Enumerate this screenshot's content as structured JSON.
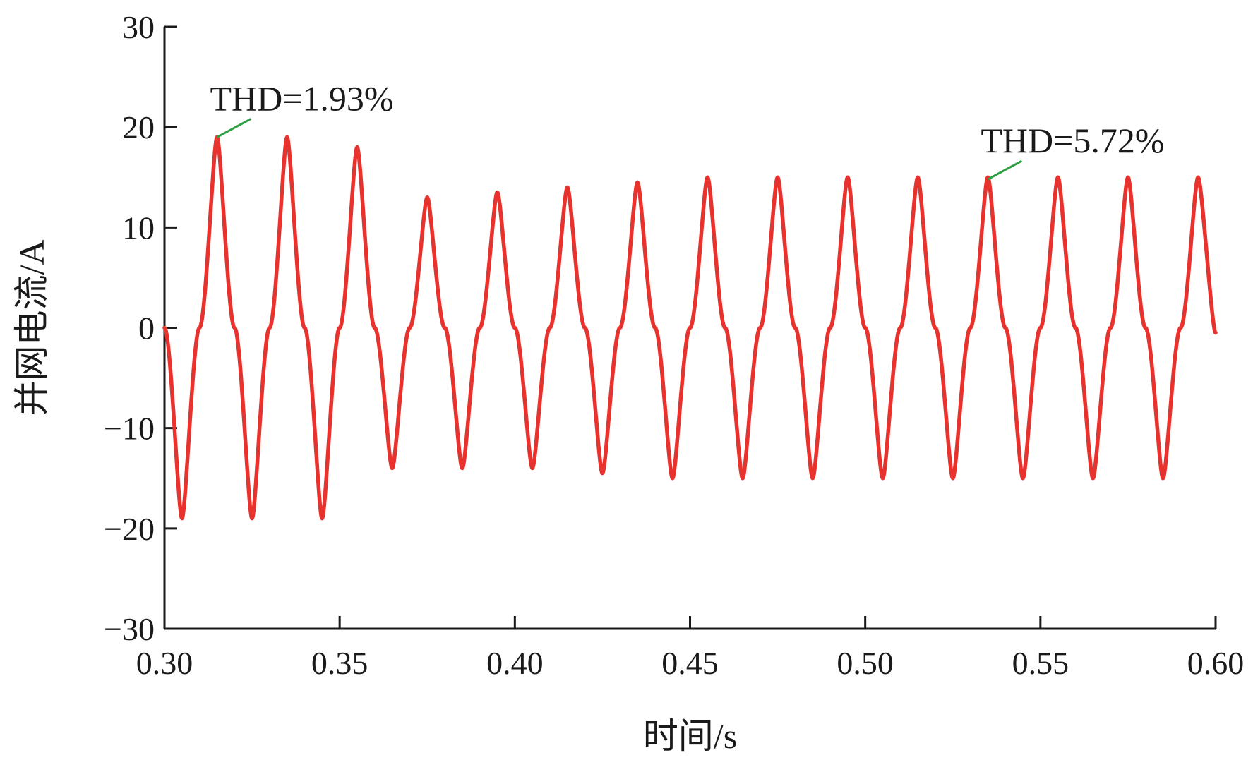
{
  "chart_data": {
    "type": "line",
    "title": "",
    "xlabel": "时间/s",
    "ylabel": "并网电流/A",
    "xlim": [
      0.3,
      0.6
    ],
    "ylim": [
      -30,
      30
    ],
    "xticks": [
      0.3,
      0.35,
      0.4,
      0.45,
      0.5,
      0.55,
      0.6
    ],
    "xtick_labels": [
      "0.30",
      "0.35",
      "0.40",
      "0.45",
      "0.50",
      "0.55",
      "0.60"
    ],
    "yticks": [
      30,
      20,
      10,
      0,
      -10,
      -20,
      -30
    ],
    "ytick_labels": [
      "30",
      "20",
      "10",
      "0",
      "−10",
      "−20",
      "−30"
    ],
    "grid": false,
    "line_color": "#e8322e",
    "annotation_color": "#2ea043",
    "series": [
      {
        "x": [
          0.3,
          0.305,
          0.31,
          0.315,
          0.32,
          0.325,
          0.33,
          0.335,
          0.34,
          0.345,
          0.35,
          0.355,
          0.36,
          0.365,
          0.37,
          0.375,
          0.38,
          0.385,
          0.39,
          0.395,
          0.4,
          0.405,
          0.41,
          0.415,
          0.42,
          0.425,
          0.43,
          0.435,
          0.44,
          0.445,
          0.45,
          0.455,
          0.46,
          0.465,
          0.47,
          0.475,
          0.48,
          0.485,
          0.49,
          0.495,
          0.5,
          0.505,
          0.51,
          0.515,
          0.52,
          0.525,
          0.53,
          0.535,
          0.54,
          0.545,
          0.55,
          0.555,
          0.56,
          0.565,
          0.57,
          0.575,
          0.58,
          0.585,
          0.59,
          0.595,
          0.6
        ],
        "y": [
          0,
          -19,
          0,
          19,
          0,
          -19,
          0,
          19,
          0,
          -19,
          0,
          18,
          0,
          -14,
          0,
          13,
          0,
          -14,
          0,
          13.5,
          0,
          -14,
          0,
          14,
          0,
          -14.5,
          0,
          14.5,
          0,
          -15,
          0,
          15,
          0,
          -15,
          0,
          15,
          0,
          -15,
          0,
          15,
          0,
          -15,
          0,
          15,
          0,
          -15,
          0,
          15,
          0,
          -15,
          0,
          15,
          0,
          -15,
          0,
          15,
          0,
          -15,
          0,
          15,
          -0.5
        ]
      }
    ],
    "annotations": [
      {
        "text": "THD=1.93%",
        "x": 0.315,
        "y": 19
      },
      {
        "text": "THD=5.72%",
        "x": 0.535,
        "y": 14.8
      }
    ]
  }
}
